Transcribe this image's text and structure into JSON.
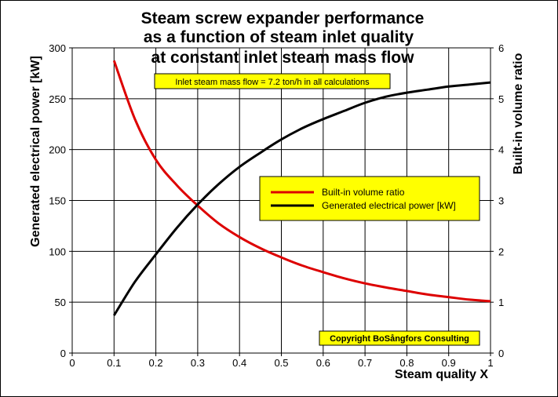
{
  "chart_data": {
    "type": "line",
    "title_lines": [
      "Steam screw expander performance",
      "as a function of steam inlet quality",
      "at constant inlet steam mass flow"
    ],
    "xlabel": "Steam quality X",
    "ylabel_left": "Generated electrical power [kW]",
    "ylabel_right": "Built-in volume ratio",
    "xlim": [
      0,
      1
    ],
    "ylim_left": [
      0,
      300
    ],
    "ylim_right": [
      0,
      6
    ],
    "x_ticks": [
      "0",
      "0.1",
      "0.2",
      "0.3",
      "0.4",
      "0.5",
      "0.6",
      "0.7",
      "0.8",
      "0.9",
      "1"
    ],
    "y_left_ticks": [
      "0",
      "50",
      "100",
      "150",
      "200",
      "250",
      "300"
    ],
    "y_right_ticks": [
      "0",
      "1",
      "2",
      "3",
      "4",
      "5",
      "6"
    ],
    "grid": true,
    "x": [
      0.1,
      0.15,
      0.2,
      0.25,
      0.3,
      0.35,
      0.4,
      0.45,
      0.5,
      0.55,
      0.6,
      0.65,
      0.7,
      0.75,
      0.8,
      0.85,
      0.9,
      0.95,
      1.0
    ],
    "series": [
      {
        "name": "Built-in volume ratio",
        "axis": "right",
        "color": "#dd0000",
        "values": [
          5.75,
          4.6,
          3.8,
          3.3,
          2.9,
          2.55,
          2.28,
          2.06,
          1.88,
          1.72,
          1.59,
          1.47,
          1.37,
          1.29,
          1.22,
          1.15,
          1.1,
          1.05,
          1.02
        ]
      },
      {
        "name": "Generated electrical power [kW]",
        "axis": "left",
        "color": "#000000",
        "values": [
          37,
          70,
          97,
          123,
          146,
          166,
          183,
          197,
          210,
          221,
          230,
          238,
          246,
          252,
          256,
          259,
          262,
          264,
          266
        ]
      }
    ],
    "annotations": [
      "Inlet steam mass flow = 7.2 ton/h in all calculations",
      "Copyright BoSångfors Consulting"
    ],
    "legend_position": "center-right",
    "box_color": "#ffff00"
  }
}
